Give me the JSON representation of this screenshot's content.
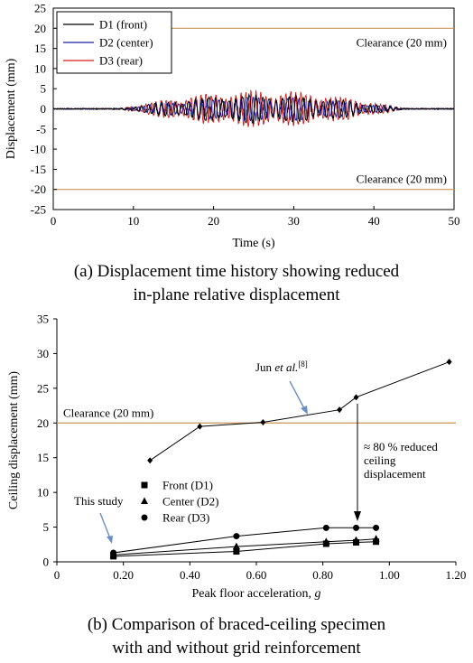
{
  "chart_data": [
    {
      "type": "line",
      "xlabel": "Time (s)",
      "ylabel": "Displacement (mm)",
      "xlim": [
        0,
        50
      ],
      "ylim": [
        -25,
        25
      ],
      "xticks": [
        "0",
        "10",
        "20",
        "30",
        "40",
        "50"
      ],
      "yticks": [
        "25",
        "20",
        "15",
        "10",
        "5",
        "0",
        "-5",
        "-10",
        "-15",
        "-20",
        "-25"
      ],
      "grid": false,
      "legend_placement": "top-left",
      "series": [
        {
          "name": "D1 (front)",
          "color": "#000000",
          "amplitude_mm": 3.5
        },
        {
          "name": "D2 (center)",
          "color": "#1c1ca8",
          "amplitude_mm": 3.0
        },
        {
          "name": "D3 (rear)",
          "color": "#d41f1f",
          "amplitude_mm": 4.5
        }
      ],
      "excitation_window_s": [
        8,
        44
      ],
      "reference_lines": [
        {
          "y": 20,
          "label": "Clearance (20 mm)",
          "color": "#c8965a"
        },
        {
          "y": -20,
          "label": "Clearance (20 mm)",
          "color": "#c8965a"
        }
      ],
      "caption_lines": [
        "(a) Displacement time history showing reduced",
        "in-plane relative displacement"
      ]
    },
    {
      "type": "scatter",
      "xlabel": "Peak floor acceleration, ",
      "xlabel_italic": "g",
      "ylabel": "Ceiling displacement (mm)",
      "xlim": [
        0,
        1.2
      ],
      "ylim": [
        0,
        35
      ],
      "xticks": [
        "0",
        "0.20",
        "0.40",
        "0.60",
        "0.80",
        "1.00",
        "1.20"
      ],
      "yticks": [
        "35",
        "30",
        "25",
        "20",
        "15",
        "10",
        "5",
        "0"
      ],
      "grid": false,
      "legend_placement": "lower-left",
      "series": [
        {
          "name": "Jun et al.[8]",
          "marker": "diamond",
          "x": [
            0.28,
            0.43,
            0.62,
            0.85,
            0.9,
            1.18
          ],
          "y": [
            14.6,
            19.5,
            20.1,
            21.9,
            23.7,
            28.8
          ]
        },
        {
          "name": "Front (D1)",
          "marker": "square",
          "x": [
            0.17,
            0.54,
            0.81,
            0.9,
            0.96
          ],
          "y": [
            0.8,
            1.5,
            2.6,
            2.8,
            2.9
          ]
        },
        {
          "name": "Center (D2)",
          "marker": "triangle",
          "x": [
            0.17,
            0.54,
            0.81,
            0.9,
            0.96
          ],
          "y": [
            1.0,
            2.2,
            2.9,
            3.1,
            3.3
          ]
        },
        {
          "name": "Rear (D3)",
          "marker": "circle",
          "x": [
            0.17,
            0.54,
            0.81,
            0.9,
            0.96
          ],
          "y": [
            1.3,
            3.7,
            4.9,
            4.9,
            4.9
          ]
        }
      ],
      "reference_line": {
        "y": 20,
        "label": "Clearance (20 mm)",
        "color": "#c8965a"
      },
      "annotations": {
        "jun_prefix": "Jun ",
        "jun_italic": "et al.",
        "jun_ref": "[8]",
        "this_study": "This study",
        "reduction_lines": [
          "≈ 80 % reduced",
          "ceiling",
          "displacement"
        ]
      },
      "caption_lines": [
        "(b) Comparison of braced-ceiling specimen",
        "with and without grid reinforcement"
      ]
    }
  ]
}
